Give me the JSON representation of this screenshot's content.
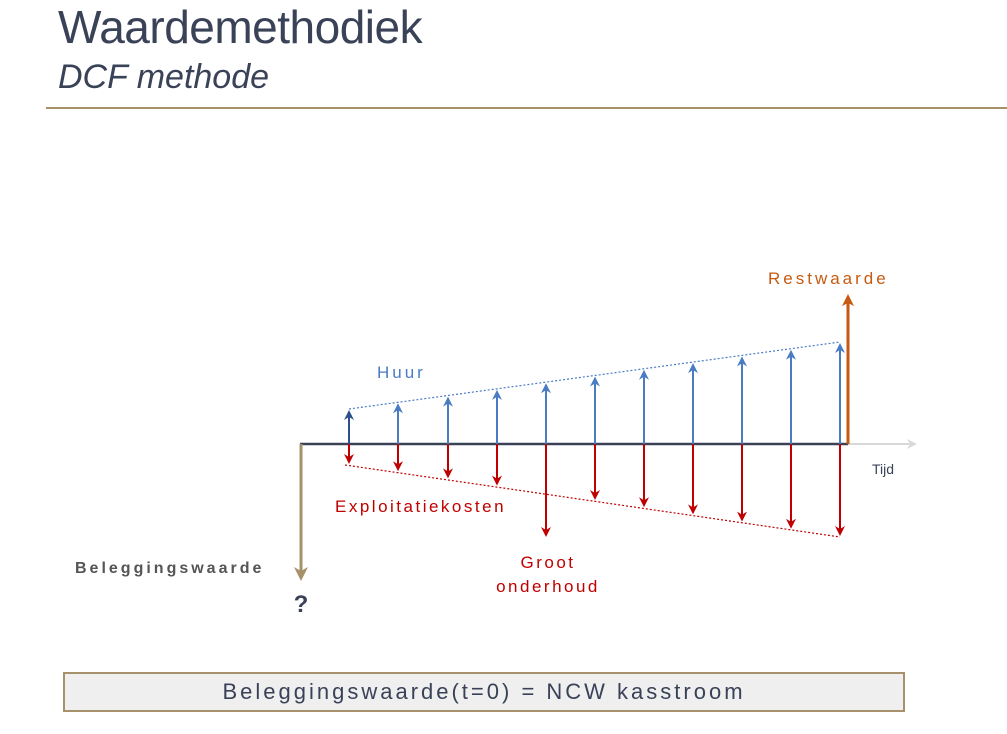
{
  "header": {
    "title": "Waardemethodiek",
    "subtitle": "DCF methode"
  },
  "diagram": {
    "labels": {
      "rent": "Huur",
      "costs": "Exploitatiekosten",
      "residual": "Restwaarde",
      "maintenance_line1": "Groot",
      "maintenance_line2": "onderhoud",
      "time": "Tijd",
      "investment": "Beleggingswaarde",
      "unknown": "?"
    },
    "colors": {
      "rent": "#4a7cc4",
      "rent_first": "#2f4f8a",
      "costs": "#c00000",
      "residual": "#c55a11",
      "investment": "#a6916a",
      "axis": "#3a4258",
      "time_axis": "#d9d9d9"
    }
  },
  "formula": {
    "text": "Beleggingswaarde(t=0) = NCW kasstroom"
  }
}
